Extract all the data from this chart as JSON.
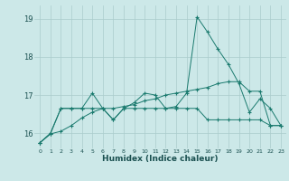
{
  "xlabel": "Humidex (Indice chaleur)",
  "bg_color": "#cce8e8",
  "grid_color": "#aacccc",
  "line_color": "#1a7a6e",
  "xlim": [
    -0.5,
    23.5
  ],
  "ylim": [
    15.6,
    19.35
  ],
  "yticks": [
    16,
    17,
    18,
    19
  ],
  "xticks": [
    0,
    1,
    2,
    3,
    4,
    5,
    6,
    7,
    8,
    9,
    10,
    11,
    12,
    13,
    14,
    15,
    16,
    17,
    18,
    19,
    20,
    21,
    22,
    23
  ],
  "line1": [
    15.75,
    15.98,
    16.65,
    16.65,
    16.65,
    17.05,
    16.65,
    16.35,
    16.65,
    16.8,
    17.05,
    17.0,
    16.65,
    16.7,
    17.05,
    19.05,
    18.65,
    18.2,
    17.8,
    17.3,
    16.55,
    16.9,
    16.65,
    16.2
  ],
  "line2": [
    15.75,
    16.0,
    16.65,
    16.65,
    16.65,
    16.65,
    16.65,
    16.35,
    16.65,
    16.65,
    16.65,
    16.65,
    16.65,
    16.65,
    16.65,
    16.65,
    16.35,
    16.35,
    16.35,
    16.35,
    16.35,
    16.35,
    16.2,
    16.2
  ],
  "line3": [
    15.75,
    15.98,
    16.05,
    16.2,
    16.4,
    16.55,
    16.65,
    16.65,
    16.7,
    16.75,
    16.85,
    16.9,
    17.0,
    17.05,
    17.1,
    17.15,
    17.2,
    17.3,
    17.35,
    17.35,
    17.1,
    17.1,
    16.2,
    16.2
  ]
}
